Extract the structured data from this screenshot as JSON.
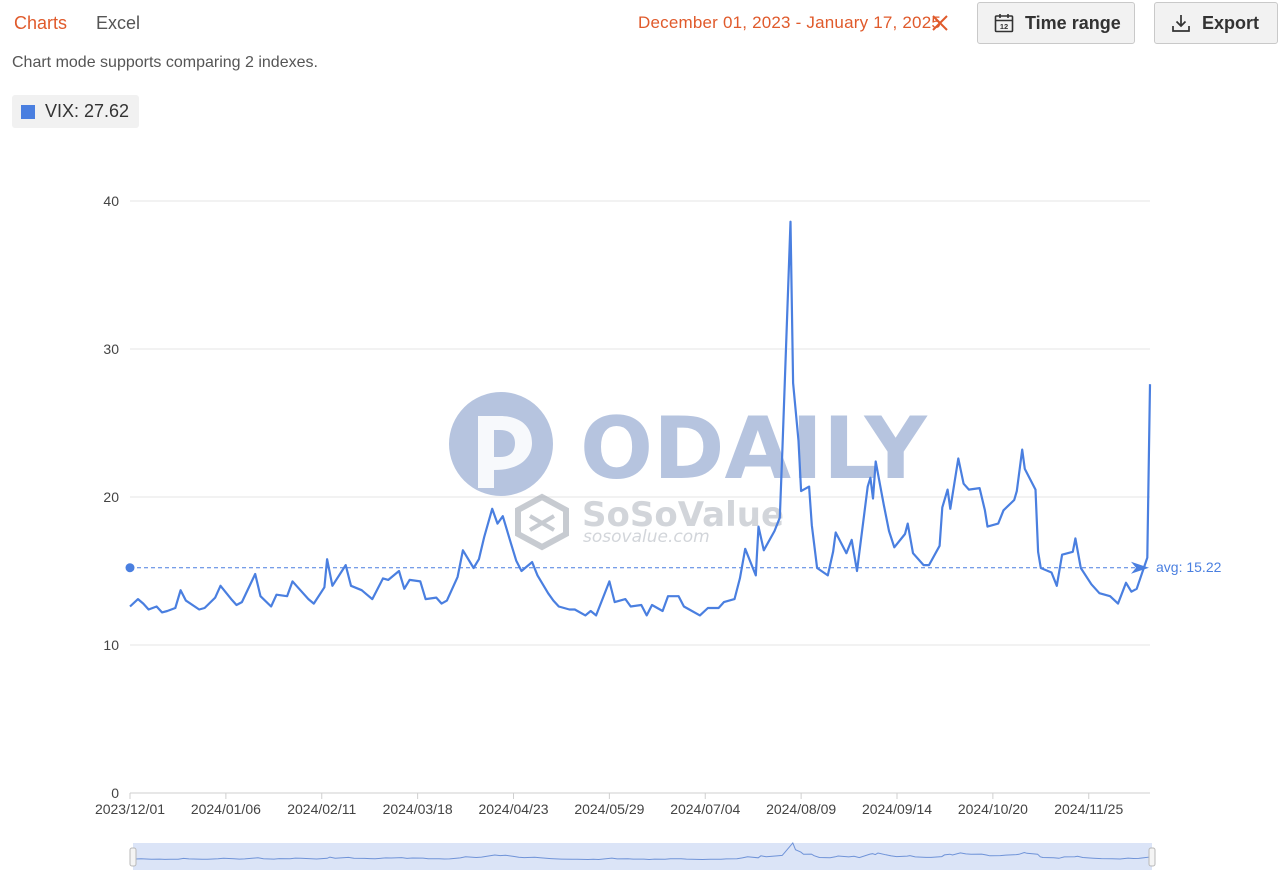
{
  "tabs": [
    {
      "label": "Charts"
    },
    {
      "label": "Excel"
    }
  ],
  "date_range": "December 01, 2023 - January 17, 2025",
  "buttons": {
    "time_range": "Time range",
    "export": "Export"
  },
  "hint": "Chart mode supports comparing 2 indexes.",
  "legend_label": "VIX: 27.62",
  "avg_label": "avg: 15.22",
  "icons": {
    "clear": "close-icon",
    "time_range": "calendar-icon",
    "export": "download-icon"
  },
  "colors": {
    "accent": "#e05a2b",
    "series": "#4a7fe0"
  },
  "chart_data": {
    "type": "line",
    "ylim": [
      0,
      40
    ],
    "y_ticks": [
      "0",
      "10",
      "20",
      "30",
      "40"
    ],
    "x_tick_labels": [
      "2023/12/01",
      "2024/01/06",
      "2024/02/11",
      "2024/03/18",
      "2024/04/23",
      "2024/05/29",
      "2024/07/04",
      "2024/08/09",
      "2024/09/14",
      "2024/10/20",
      "2024/11/25"
    ],
    "grid": true,
    "average": 15.22,
    "series": [
      {
        "name": "VIX",
        "points": [
          [
            "2023-12-01",
            12.6
          ],
          [
            "2023-12-04",
            13.1
          ],
          [
            "2023-12-06",
            12.8
          ],
          [
            "2023-12-08",
            12.4
          ],
          [
            "2023-12-11",
            12.6
          ],
          [
            "2023-12-13",
            12.2
          ],
          [
            "2023-12-15",
            12.3
          ],
          [
            "2023-12-18",
            12.5
          ],
          [
            "2023-12-20",
            13.7
          ],
          [
            "2023-12-22",
            13.0
          ],
          [
            "2023-12-27",
            12.4
          ],
          [
            "2023-12-29",
            12.5
          ],
          [
            "2024-01-02",
            13.2
          ],
          [
            "2024-01-04",
            14.0
          ],
          [
            "2024-01-08",
            13.1
          ],
          [
            "2024-01-10",
            12.7
          ],
          [
            "2024-01-12",
            12.9
          ],
          [
            "2024-01-17",
            14.8
          ],
          [
            "2024-01-19",
            13.3
          ],
          [
            "2024-01-23",
            12.6
          ],
          [
            "2024-01-25",
            13.4
          ],
          [
            "2024-01-29",
            13.3
          ],
          [
            "2024-01-31",
            14.3
          ],
          [
            "2024-02-02",
            13.9
          ],
          [
            "2024-02-06",
            13.1
          ],
          [
            "2024-02-08",
            12.8
          ],
          [
            "2024-02-12",
            13.9
          ],
          [
            "2024-02-13",
            15.8
          ],
          [
            "2024-02-15",
            14.0
          ],
          [
            "2024-02-20",
            15.4
          ],
          [
            "2024-02-22",
            14.0
          ],
          [
            "2024-02-26",
            13.7
          ],
          [
            "2024-02-28",
            13.4
          ],
          [
            "2024-03-01",
            13.1
          ],
          [
            "2024-03-05",
            14.5
          ],
          [
            "2024-03-07",
            14.4
          ],
          [
            "2024-03-11",
            15.0
          ],
          [
            "2024-03-13",
            13.8
          ],
          [
            "2024-03-15",
            14.4
          ],
          [
            "2024-03-19",
            14.3
          ],
          [
            "2024-03-21",
            13.1
          ],
          [
            "2024-03-25",
            13.2
          ],
          [
            "2024-03-27",
            12.8
          ],
          [
            "2024-03-29",
            13.0
          ],
          [
            "2024-04-02",
            14.6
          ],
          [
            "2024-04-04",
            16.4
          ],
          [
            "2024-04-08",
            15.2
          ],
          [
            "2024-04-10",
            15.8
          ],
          [
            "2024-04-12",
            17.3
          ],
          [
            "2024-04-15",
            19.2
          ],
          [
            "2024-04-17",
            18.2
          ],
          [
            "2024-04-19",
            18.7
          ],
          [
            "2024-04-22",
            16.9
          ],
          [
            "2024-04-24",
            15.7
          ],
          [
            "2024-04-26",
            15.0
          ],
          [
            "2024-04-30",
            15.6
          ],
          [
            "2024-05-02",
            14.7
          ],
          [
            "2024-05-06",
            13.5
          ],
          [
            "2024-05-08",
            13.0
          ],
          [
            "2024-05-10",
            12.6
          ],
          [
            "2024-05-14",
            12.4
          ],
          [
            "2024-05-16",
            12.4
          ],
          [
            "2024-05-20",
            12.0
          ],
          [
            "2024-05-22",
            12.3
          ],
          [
            "2024-05-24",
            12.0
          ],
          [
            "2024-05-29",
            14.3
          ],
          [
            "2024-05-31",
            12.9
          ],
          [
            "2024-06-04",
            13.1
          ],
          [
            "2024-06-06",
            12.6
          ],
          [
            "2024-06-10",
            12.7
          ],
          [
            "2024-06-12",
            12.0
          ],
          [
            "2024-06-14",
            12.7
          ],
          [
            "2024-06-18",
            12.3
          ],
          [
            "2024-06-20",
            13.3
          ],
          [
            "2024-06-24",
            13.3
          ],
          [
            "2024-06-26",
            12.6
          ],
          [
            "2024-06-28",
            12.4
          ],
          [
            "2024-07-02",
            12.0
          ],
          [
            "2024-07-05",
            12.5
          ],
          [
            "2024-07-09",
            12.5
          ],
          [
            "2024-07-11",
            12.9
          ],
          [
            "2024-07-15",
            13.1
          ],
          [
            "2024-07-17",
            14.5
          ],
          [
            "2024-07-19",
            16.5
          ],
          [
            "2024-07-23",
            14.7
          ],
          [
            "2024-07-24",
            18.0
          ],
          [
            "2024-07-26",
            16.4
          ],
          [
            "2024-07-30",
            17.7
          ],
          [
            "2024-08-01",
            18.6
          ],
          [
            "2024-08-02",
            23.4
          ],
          [
            "2024-08-05",
            38.6
          ],
          [
            "2024-08-06",
            27.7
          ],
          [
            "2024-08-08",
            23.8
          ],
          [
            "2024-08-09",
            20.4
          ],
          [
            "2024-08-12",
            20.7
          ],
          [
            "2024-08-13",
            18.1
          ],
          [
            "2024-08-15",
            15.2
          ],
          [
            "2024-08-19",
            14.7
          ],
          [
            "2024-08-21",
            16.3
          ],
          [
            "2024-08-22",
            17.6
          ],
          [
            "2024-08-26",
            16.2
          ],
          [
            "2024-08-28",
            17.1
          ],
          [
            "2024-08-30",
            15.0
          ],
          [
            "2024-09-03",
            20.7
          ],
          [
            "2024-09-04",
            21.3
          ],
          [
            "2024-09-05",
            19.9
          ],
          [
            "2024-09-06",
            22.4
          ],
          [
            "2024-09-09",
            19.5
          ],
          [
            "2024-09-11",
            17.7
          ],
          [
            "2024-09-13",
            16.6
          ],
          [
            "2024-09-17",
            17.5
          ],
          [
            "2024-09-18",
            18.2
          ],
          [
            "2024-09-20",
            16.2
          ],
          [
            "2024-09-24",
            15.4
          ],
          [
            "2024-09-26",
            15.4
          ],
          [
            "2024-09-30",
            16.7
          ],
          [
            "2024-10-01",
            19.3
          ],
          [
            "2024-10-03",
            20.5
          ],
          [
            "2024-10-04",
            19.2
          ],
          [
            "2024-10-07",
            22.6
          ],
          [
            "2024-10-09",
            20.9
          ],
          [
            "2024-10-11",
            20.5
          ],
          [
            "2024-10-15",
            20.6
          ],
          [
            "2024-10-17",
            19.1
          ],
          [
            "2024-10-18",
            18.0
          ],
          [
            "2024-10-22",
            18.2
          ],
          [
            "2024-10-24",
            19.1
          ],
          [
            "2024-10-28",
            19.8
          ],
          [
            "2024-10-29",
            20.4
          ],
          [
            "2024-10-31",
            23.2
          ],
          [
            "2024-11-01",
            21.9
          ],
          [
            "2024-11-05",
            20.5
          ],
          [
            "2024-11-06",
            16.3
          ],
          [
            "2024-11-07",
            15.2
          ],
          [
            "2024-11-11",
            14.9
          ],
          [
            "2024-11-13",
            14.0
          ],
          [
            "2024-11-15",
            16.1
          ],
          [
            "2024-11-19",
            16.3
          ],
          [
            "2024-11-20",
            17.2
          ],
          [
            "2024-11-22",
            15.2
          ],
          [
            "2024-11-26",
            14.1
          ],
          [
            "2024-11-29",
            13.5
          ],
          [
            "2024-12-03",
            13.3
          ],
          [
            "2024-12-06",
            12.8
          ],
          [
            "2024-12-09",
            14.2
          ],
          [
            "2024-12-11",
            13.6
          ],
          [
            "2024-12-13",
            13.8
          ],
          [
            "2024-12-17",
            15.9
          ],
          [
            "2024-12-18",
            27.62
          ]
        ]
      }
    ]
  }
}
